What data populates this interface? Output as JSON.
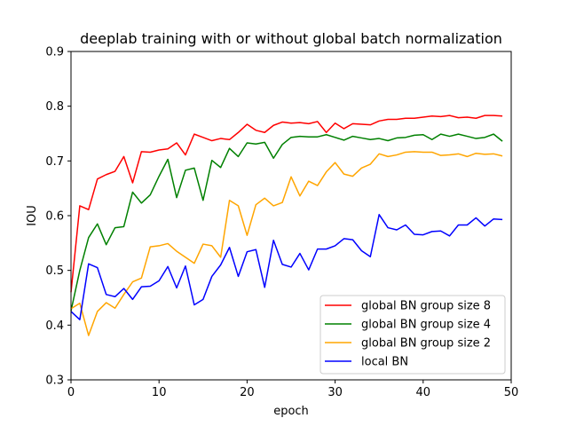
{
  "chart_data": {
    "type": "line",
    "title": "deeplab training with or without global batch normalization",
    "xlabel": "epoch",
    "ylabel": "IOU",
    "xlim": [
      0,
      50
    ],
    "ylim": [
      0.3,
      0.9
    ],
    "x_ticks": [
      "0",
      "10",
      "20",
      "30",
      "40",
      "50"
    ],
    "y_ticks": [
      "0.3",
      "0.4",
      "0.5",
      "0.6",
      "0.7",
      "0.8",
      "0.9"
    ],
    "grid": false,
    "legend_position": "lower-right",
    "x": [
      0,
      1,
      2,
      3,
      4,
      5,
      6,
      7,
      8,
      9,
      10,
      11,
      12,
      13,
      14,
      15,
      16,
      17,
      18,
      19,
      20,
      21,
      22,
      23,
      24,
      25,
      26,
      27,
      28,
      29,
      30,
      31,
      32,
      33,
      34,
      35,
      36,
      37,
      38,
      39,
      40,
      41,
      42,
      43,
      44,
      45,
      46,
      47,
      48,
      49
    ],
    "series": [
      {
        "name": "global BN group size 8",
        "color": "#ff0000",
        "values": [
          0.46,
          0.618,
          0.611,
          0.667,
          0.675,
          0.681,
          0.708,
          0.66,
          0.717,
          0.716,
          0.72,
          0.722,
          0.733,
          0.711,
          0.749,
          0.743,
          0.737,
          0.741,
          0.739,
          0.752,
          0.767,
          0.756,
          0.752,
          0.765,
          0.771,
          0.769,
          0.77,
          0.768,
          0.772,
          0.752,
          0.769,
          0.759,
          0.768,
          0.767,
          0.766,
          0.773,
          0.776,
          0.776,
          0.778,
          0.778,
          0.78,
          0.782,
          0.781,
          0.783,
          0.779,
          0.78,
          0.778,
          0.783,
          0.783,
          0.782
        ]
      },
      {
        "name": "global BN group size 4",
        "color": "#008000",
        "values": [
          0.426,
          0.5,
          0.56,
          0.585,
          0.547,
          0.578,
          0.58,
          0.643,
          0.623,
          0.638,
          0.672,
          0.703,
          0.633,
          0.683,
          0.687,
          0.628,
          0.701,
          0.688,
          0.723,
          0.708,
          0.733,
          0.731,
          0.734,
          0.705,
          0.73,
          0.743,
          0.745,
          0.744,
          0.744,
          0.748,
          0.743,
          0.738,
          0.745,
          0.742,
          0.739,
          0.741,
          0.737,
          0.742,
          0.743,
          0.747,
          0.748,
          0.739,
          0.749,
          0.745,
          0.749,
          0.745,
          0.741,
          0.743,
          0.749,
          0.736
        ]
      },
      {
        "name": "global BN group size 2",
        "color": "#ffa500",
        "values": [
          0.43,
          0.44,
          0.381,
          0.425,
          0.441,
          0.431,
          0.456,
          0.479,
          0.486,
          0.543,
          0.545,
          0.549,
          0.535,
          0.524,
          0.513,
          0.548,
          0.545,
          0.524,
          0.628,
          0.618,
          0.564,
          0.62,
          0.632,
          0.618,
          0.624,
          0.671,
          0.636,
          0.663,
          0.655,
          0.68,
          0.697,
          0.676,
          0.672,
          0.687,
          0.694,
          0.713,
          0.708,
          0.711,
          0.716,
          0.717,
          0.716,
          0.716,
          0.71,
          0.711,
          0.713,
          0.708,
          0.714,
          0.712,
          0.713,
          0.709
        ]
      },
      {
        "name": "local BN",
        "color": "#0000ff",
        "values": [
          0.425,
          0.41,
          0.512,
          0.505,
          0.456,
          0.452,
          0.467,
          0.447,
          0.47,
          0.471,
          0.481,
          0.507,
          0.468,
          0.508,
          0.437,
          0.447,
          0.489,
          0.51,
          0.542,
          0.489,
          0.534,
          0.538,
          0.469,
          0.555,
          0.511,
          0.506,
          0.531,
          0.501,
          0.539,
          0.539,
          0.545,
          0.558,
          0.556,
          0.536,
          0.525,
          0.602,
          0.578,
          0.574,
          0.583,
          0.566,
          0.565,
          0.571,
          0.572,
          0.563,
          0.583,
          0.583,
          0.596,
          0.581,
          0.594,
          0.593
        ]
      }
    ]
  }
}
